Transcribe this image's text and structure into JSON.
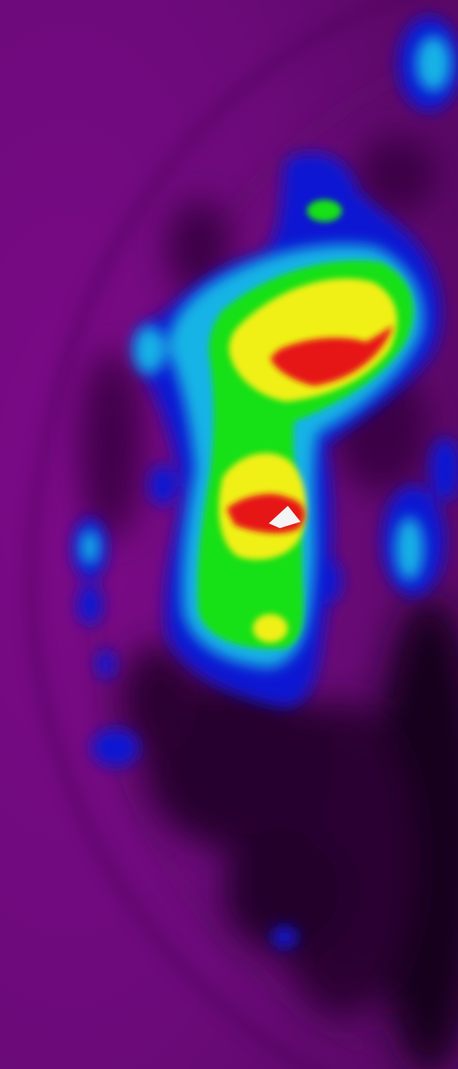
{
  "image": {
    "kind": "pseudocolor intensity map",
    "colormap": [
      "#6e0a78",
      "#0a14d2",
      "#14b4e6",
      "#18e018",
      "#f0f014",
      "#e61414",
      "#ffffff"
    ],
    "background_color": "#6c0a7a",
    "shadow_color": "#1e0022",
    "labels": []
  }
}
